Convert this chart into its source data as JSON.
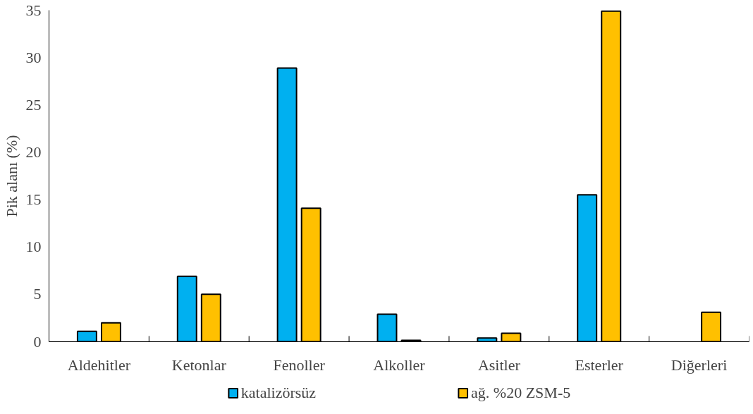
{
  "chart_data": {
    "type": "bar",
    "ylabel": "Pik alanı (%)",
    "categories": [
      "Aldehitler",
      "Ketonlar",
      "Fenoller",
      "Alkoller",
      "Asitler",
      "Esterler",
      "Diğerleri"
    ],
    "series": [
      {
        "name": "katalizörsüz",
        "color": "#00b0f0",
        "values": [
          1.1,
          6.9,
          28.9,
          2.9,
          0.4,
          15.5,
          null
        ]
      },
      {
        "name": "ağ. %20 ZSM-5",
        "color": "#ffc000",
        "values": [
          2.0,
          5.0,
          14.1,
          0.15,
          0.9,
          34.9,
          3.1
        ]
      }
    ],
    "ylim": [
      0,
      35
    ],
    "yticks": [
      0,
      5,
      10,
      15,
      20,
      25,
      30,
      35
    ],
    "grid": false,
    "legend": "bottom"
  }
}
